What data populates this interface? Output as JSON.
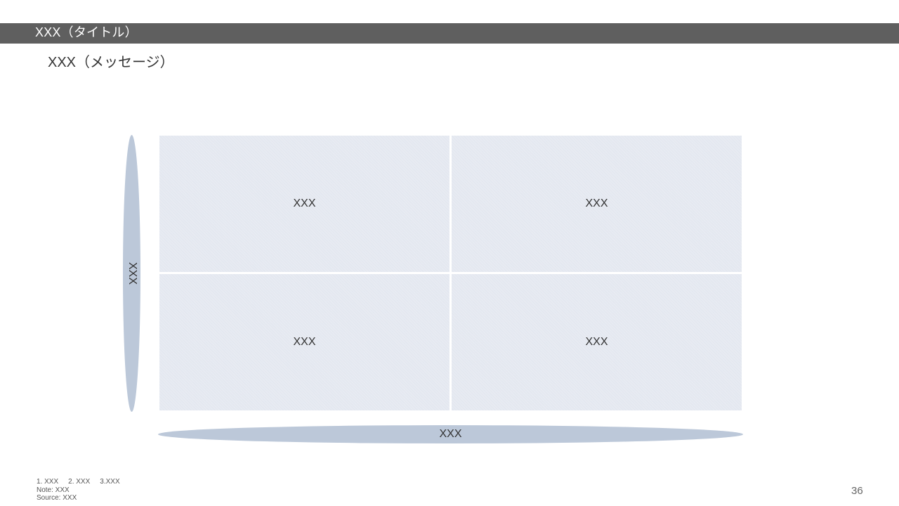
{
  "header": {
    "title": "XXX（タイトル）"
  },
  "message": "XXX（メッセージ）",
  "matrix": {
    "cells": [
      {
        "label": "XXX"
      },
      {
        "label": "XXX"
      },
      {
        "label": "XXX"
      },
      {
        "label": "XXX"
      }
    ],
    "y_axis_label": "XXX",
    "x_axis_label": "XXX"
  },
  "footer": {
    "refs": [
      "1. XXX",
      "2. XXX",
      "3.XXX"
    ],
    "note": "Note: XXX",
    "source": "Source: XXX",
    "page_number": "36"
  },
  "colors": {
    "title_bar": "#5f5f5f",
    "cell_fill": "#e4e8f0",
    "axis_fill": "#bcc8d9"
  }
}
